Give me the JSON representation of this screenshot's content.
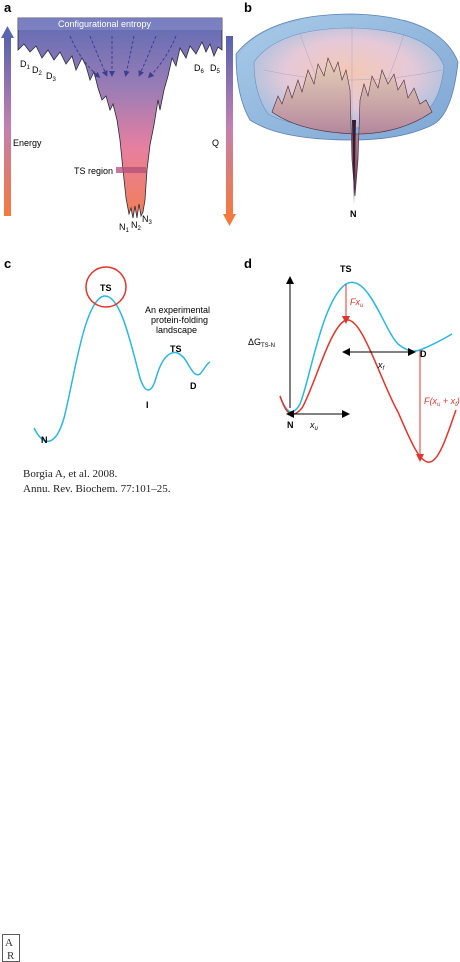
{
  "panels": {
    "a": {
      "label": "a",
      "top_label": "Configurational entropy",
      "left_axis": "Energy",
      "right_axis": "Q",
      "d_labels_left": [
        "D1",
        "D2",
        "D3"
      ],
      "d_labels_right": [
        "D6",
        "D5"
      ],
      "ts_region": "TS region",
      "native_labels": [
        "N1",
        "N2",
        "N3"
      ]
    },
    "b": {
      "label": "b",
      "native": "N"
    },
    "c": {
      "label": "c",
      "ts_main": "TS",
      "ts_second": "TS",
      "native": "N",
      "intermediate": "I",
      "denatured": "D",
      "caption": [
        "An experimental",
        "protein-folding",
        "landscape"
      ]
    },
    "d": {
      "label": "d",
      "ts": "TS",
      "delta_g": "ΔG",
      "delta_g_sub": "TS-N",
      "force_ts": "Fx",
      "force_ts_sub": "u",
      "xu": "x",
      "xu_sub": "u",
      "xf": "x",
      "xf_sub": "f",
      "force_d": "F(x",
      "force_d_mid": "u",
      "force_d_plus": " + x",
      "force_d_end": "f",
      "force_d_close": ")",
      "native": "N",
      "denatured": "D"
    }
  },
  "citation": {
    "line1": "Borgia A, et al. 2008.",
    "line2": "Annu. Rev. Biochem. 77:101–25."
  },
  "colors": {
    "cyan_curve": "#2bb7e0",
    "red_curve": "#e0352b",
    "funnel_top": "#6f74b7",
    "funnel_bottom": "#f07c5a",
    "energy_arrow_top": "#5b66b0",
    "energy_arrow_bottom": "#f47a3c"
  }
}
